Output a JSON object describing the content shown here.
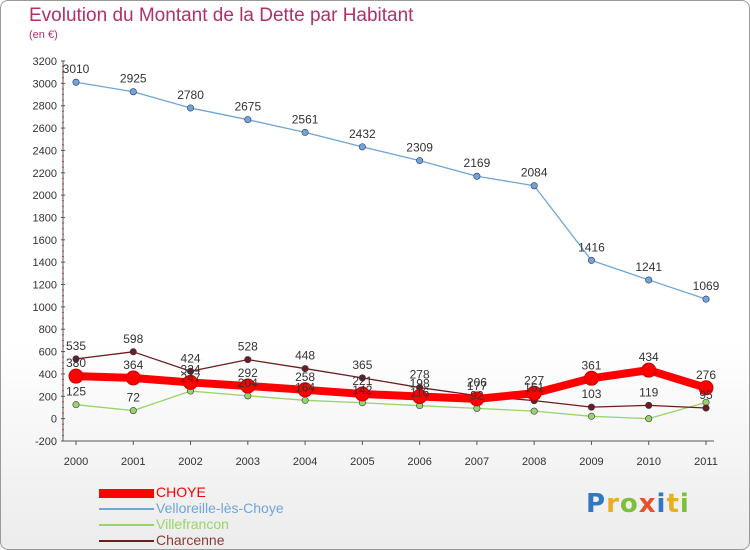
{
  "title": "Evolution du Montant de la Dette par Habitant",
  "unit": "(en €)",
  "chart_data": {
    "type": "line",
    "title": "Evolution du Montant de la Dette par Habitant",
    "ylabel": "(en €)",
    "xlabel": "",
    "x": [
      "2000",
      "2001",
      "2002",
      "2003",
      "2004",
      "2005",
      "2006",
      "2007",
      "2008",
      "2009",
      "2010",
      "2011"
    ],
    "ylim": [
      -200,
      3200
    ],
    "yticks": [
      -200,
      0,
      200,
      400,
      600,
      800,
      1000,
      1200,
      1400,
      1600,
      1800,
      2000,
      2200,
      2400,
      2600,
      2800,
      3000,
      3200
    ],
    "grid": false,
    "legend": "bottom-left",
    "series": [
      {
        "name": "CHOYE",
        "color": "#ff0000",
        "values": [
          380,
          364,
          324,
          292,
          258,
          221,
          198,
          177,
          227,
          361,
          434,
          276
        ],
        "labels": [
          "380",
          "364",
          "324",
          "292",
          "258",
          "221",
          "198",
          "177",
          "227",
          "361",
          "434",
          "276"
        ]
      },
      {
        "name": "Velloreille-lès-Choye",
        "color": "#6fa5d8",
        "values": [
          3010,
          2925,
          2780,
          2675,
          2561,
          2432,
          2309,
          2169,
          2084,
          1416,
          1241,
          1069
        ],
        "labels": [
          "3010",
          "2925",
          "2780",
          "2675",
          "2561",
          "2432",
          "2309",
          "2169",
          "2084",
          "1416",
          "1241",
          "1069"
        ]
      },
      {
        "name": "Villefrancon",
        "color": "#9ad468",
        "values": [
          125,
          72,
          247,
          204,
          164,
          142,
          116,
          92,
          67,
          21,
          0,
          146
        ],
        "labels": [
          "125",
          "72",
          "247",
          "204",
          "164",
          "142",
          "116",
          "92",
          "",
          "",
          "",
          ""
        ]
      },
      {
        "name": "Charcenne",
        "color": "#6b1e1e",
        "values": [
          535,
          598,
          424,
          528,
          448,
          365,
          278,
          206,
          161,
          103,
          119,
          95
        ],
        "labels": [
          "535",
          "598",
          "424",
          "528",
          "448",
          "365",
          "278",
          "206",
          "161",
          "103",
          "119",
          "95"
        ]
      }
    ]
  },
  "logo": {
    "text": [
      "P",
      "r",
      "o",
      "x",
      "i",
      "t",
      "i"
    ],
    "colors": [
      "#2f78c4",
      "#e8b020",
      "#7dbf3a",
      "#e8502a",
      "#2f78c4",
      "#e8b020",
      "#7dbf3a"
    ]
  }
}
